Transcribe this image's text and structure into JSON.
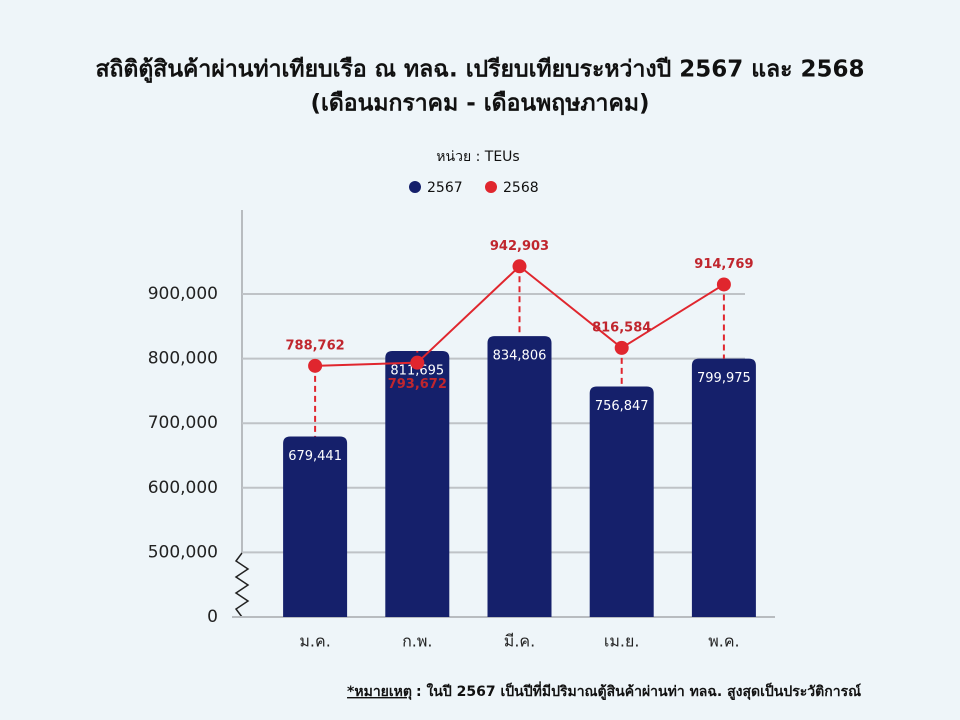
{
  "chart_data": {
    "type": "bar_line",
    "title": "สถิติตู้สินค้าผ่านท่าเทียบเรือ ณ ทลฉ. เปรียบเทียบระหว่างปี 2567 และ 2568",
    "subtitle": "(เดือนมกราคม - เดือนพฤษภาคม)",
    "unit_label": "หน่วย : TEUs",
    "categories": [
      "ม.ค.",
      "ก.พ.",
      "มี.ค.",
      "เม.ย.",
      "พ.ค."
    ],
    "series": [
      {
        "name": "2567",
        "type": "bar",
        "color": "#15206b",
        "values": [
          679441,
          811695,
          834806,
          756847,
          799975
        ],
        "value_labels": [
          "679,441",
          "811,695",
          "834,806",
          "756,847",
          "799,975"
        ]
      },
      {
        "name": "2568",
        "type": "line",
        "color": "#e0262e",
        "values": [
          788762,
          793672,
          942903,
          816584,
          914769
        ],
        "value_labels": [
          "788,762",
          "793,672",
          "942,903",
          "816,584",
          "914,769"
        ]
      }
    ],
    "ylim": [
      0,
      1030000
    ],
    "y_break": [
      0,
      400000
    ],
    "yticks": [
      {
        "value": 0,
        "label": "0"
      },
      {
        "value": 500000,
        "label": "500,000"
      },
      {
        "value": 600000,
        "label": "600,000"
      },
      {
        "value": 700000,
        "label": "700,000"
      },
      {
        "value": 800000,
        "label": "800,000"
      },
      {
        "value": 900000,
        "label": "900,000"
      }
    ],
    "grid": true,
    "legend": "top",
    "note_label": "*หมายเหตุ",
    "note_text": ": ในปี 2567 เป็นปีที่มีปริมาณตู้สินค้าผ่านท่า ทลฉ. สูงสุดเป็นประวัติการณ์"
  }
}
